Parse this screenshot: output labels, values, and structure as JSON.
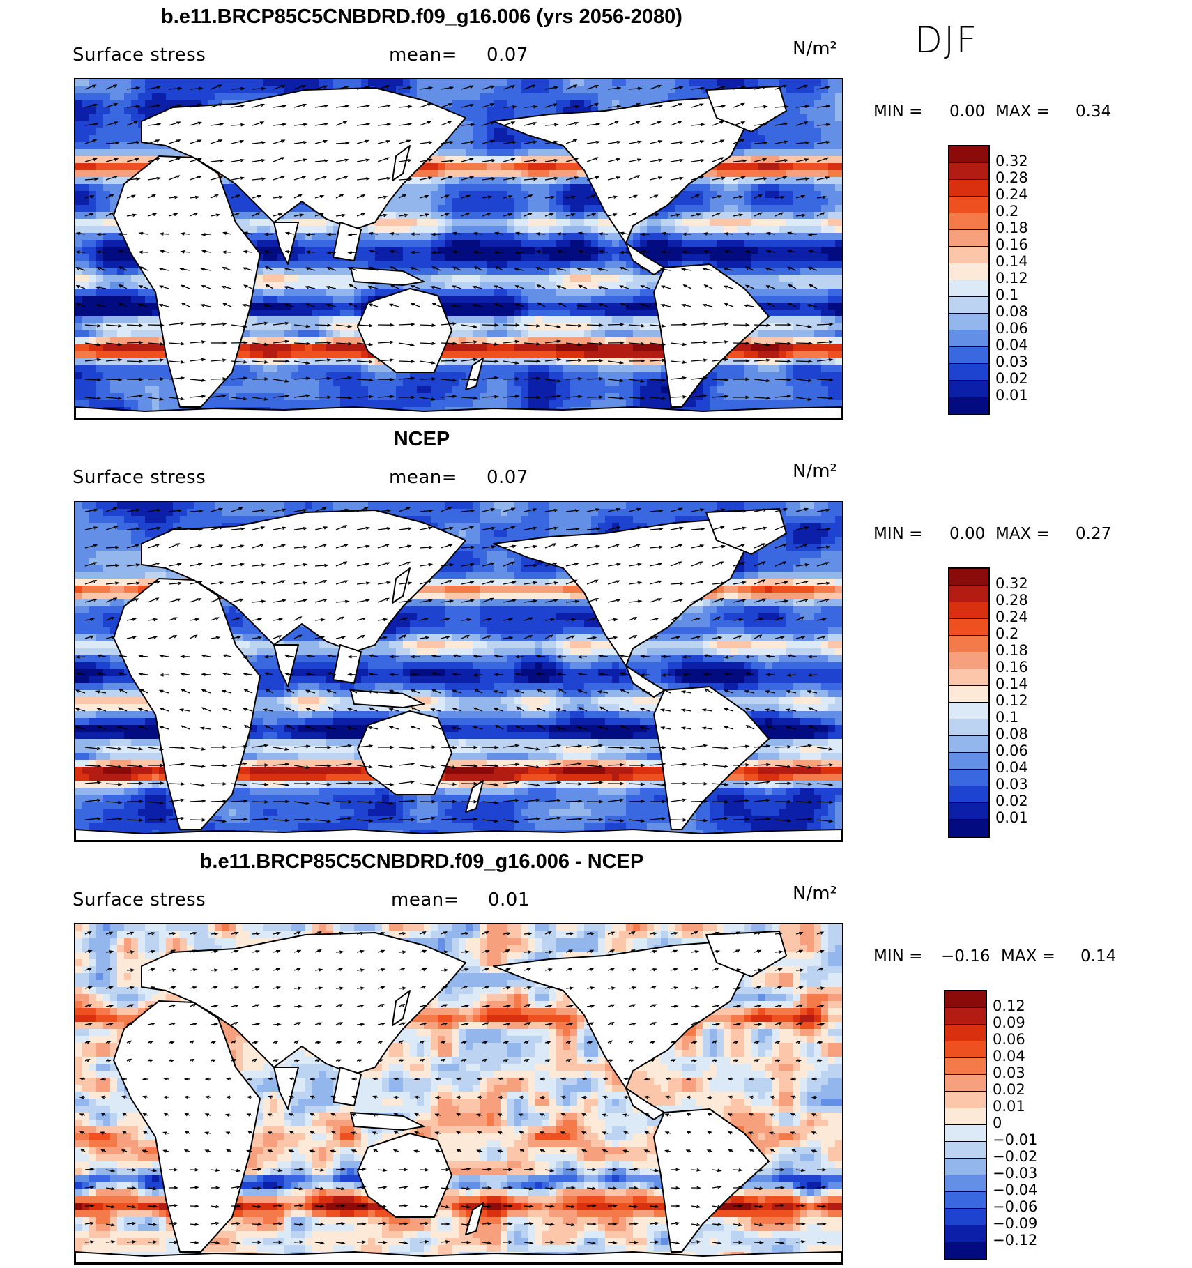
{
  "season": "DJF",
  "chart_data": [
    {
      "type": "heatmap",
      "title": "b.e11.BRCP85C5CNBDRD.f09_g16.006 (yrs 2056-2080)",
      "variable": "Surface stress",
      "mean_label": "mean=",
      "mean": "0.07",
      "units": "N/m²",
      "min_label": "MIN =",
      "min": "0.00",
      "max_label": "MAX =",
      "max": "0.34",
      "colorbar": [
        "0.32",
        "0.28",
        "0.24",
        "0.2",
        "0.18",
        "0.16",
        "0.14",
        "0.12",
        "0.1",
        "0.08",
        "0.06",
        "0.04",
        "0.03",
        "0.02",
        "0.01"
      ],
      "colors": [
        "#8b0a0a",
        "#b31c12",
        "#d9300f",
        "#ee5020",
        "#f57a4a",
        "#f7a07e",
        "#fbc6aa",
        "#fde9d8",
        "#dce9f7",
        "#bcd4f2",
        "#93b6ec",
        "#6390e6",
        "#3a68e0",
        "#1d43d0",
        "#0c1fa8",
        "#020c80"
      ],
      "mode": "abs"
    },
    {
      "type": "heatmap",
      "title": "NCEP",
      "variable": "Surface stress",
      "mean_label": "mean=",
      "mean": "0.07",
      "units": "N/m²",
      "min_label": "MIN =",
      "min": "0.00",
      "max_label": "MAX =",
      "max": "0.27",
      "colorbar": [
        "0.32",
        "0.28",
        "0.24",
        "0.2",
        "0.18",
        "0.16",
        "0.14",
        "0.12",
        "0.1",
        "0.08",
        "0.06",
        "0.04",
        "0.03",
        "0.02",
        "0.01"
      ],
      "colors": [
        "#8b0a0a",
        "#b31c12",
        "#d9300f",
        "#ee5020",
        "#f57a4a",
        "#f7a07e",
        "#fbc6aa",
        "#fde9d8",
        "#dce9f7",
        "#bcd4f2",
        "#93b6ec",
        "#6390e6",
        "#3a68e0",
        "#1d43d0",
        "#0c1fa8",
        "#020c80"
      ],
      "mode": "abs2"
    },
    {
      "type": "heatmap",
      "title": "b.e11.BRCP85C5CNBDRD.f09_g16.006 - NCEP",
      "variable": "Surface stress",
      "mean_label": "mean=",
      "mean": "0.01",
      "units": "N/m²",
      "min_label": "MIN =",
      "min": "−0.16",
      "max_label": "MAX =",
      "max": "0.14",
      "colorbar": [
        "0.12",
        "0.09",
        "0.06",
        "0.04",
        "0.03",
        "0.02",
        "0.01",
        "0",
        "−0.01",
        "−0.02",
        "−0.03",
        "−0.04",
        "−0.06",
        "−0.09",
        "−0.12"
      ],
      "colors": [
        "#8b0a0a",
        "#b31c12",
        "#d9300f",
        "#ee5020",
        "#f57a4a",
        "#f7a07e",
        "#fbc6aa",
        "#fde9d8",
        "#dce9f7",
        "#bcd4f2",
        "#93b6ec",
        "#6390e6",
        "#3a68e0",
        "#1d43d0",
        "#0c1fa8",
        "#020c80"
      ],
      "mode": "diff"
    }
  ]
}
